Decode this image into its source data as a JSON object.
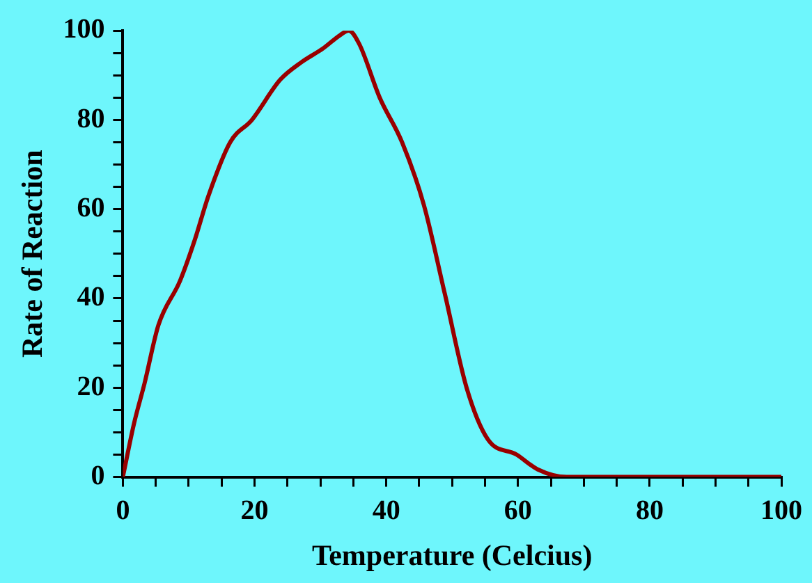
{
  "chart_data": {
    "type": "line",
    "xlabel": "Temperature (Celcius)",
    "ylabel": "Rate of Reaction",
    "x": [
      0,
      1.7,
      3.3,
      5.4,
      8.7,
      10.9,
      13,
      16.3,
      19.6,
      23.9,
      27.2,
      30.4,
      33,
      34.3,
      35.9,
      39,
      42.4,
      45.7,
      48.9,
      52.2,
      55.4,
      59.8,
      63,
      67.4,
      80,
      100
    ],
    "series": [
      {
        "color": "#990000",
        "values": [
          0,
          12,
          21,
          34,
          44,
          53,
          63,
          75,
          80,
          89,
          93,
          96,
          99,
          100,
          97,
          85,
          75,
          61,
          41,
          20,
          8.5,
          5,
          1.7,
          0,
          0,
          0
        ]
      }
    ],
    "xlim": [
      0,
      100
    ],
    "ylim": [
      0,
      100
    ],
    "xticks": [
      0,
      {
        "value": 5,
        "label": null
      },
      20,
      {
        "value": 10,
        "label": null
      },
      {
        "value": 15,
        "label": null
      },
      {
        "value": 25,
        "label": null
      },
      {
        "value": 30,
        "label": null
      },
      40,
      {
        "value": 35,
        "label": null
      },
      {
        "value": 45,
        "label": null
      },
      {
        "value": 50,
        "label": null
      },
      {
        "value": 55,
        "label": null
      },
      60,
      {
        "value": 65,
        "label": null
      },
      {
        "value": 70,
        "label": null
      },
      {
        "value": 75,
        "label": null
      },
      80,
      {
        "value": 85,
        "label": null
      },
      {
        "value": 90,
        "label": null
      },
      {
        "value": 95,
        "label": null
      },
      100
    ],
    "yticks": [
      0,
      {
        "value": 5,
        "label": null
      },
      {
        "value": 10,
        "label": null
      },
      {
        "value": 15,
        "label": null
      },
      20,
      {
        "value": 25,
        "label": null
      },
      {
        "value": 30,
        "label": null
      },
      {
        "value": 35,
        "label": null
      },
      40,
      {
        "value": 45,
        "label": null
      },
      {
        "value": 50,
        "label": null
      },
      {
        "value": 55,
        "label": null
      },
      60,
      {
        "value": 65,
        "label": null
      },
      {
        "value": 70,
        "label": null
      },
      {
        "value": 75,
        "label": null
      },
      80,
      {
        "value": 85,
        "label": null
      },
      {
        "value": 90,
        "label": null
      },
      {
        "value": 95,
        "label": null
      },
      100
    ],
    "grid": false,
    "legend": false,
    "marker": "none",
    "line_style": "solid"
  }
}
